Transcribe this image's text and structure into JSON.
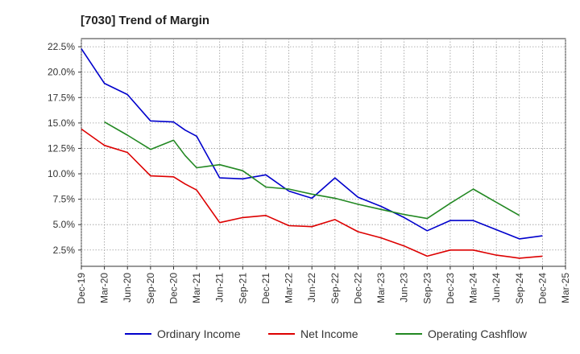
{
  "chart_data": {
    "type": "line",
    "title": "[7030]  Trend of Margin",
    "xlabel": "",
    "ylabel": "",
    "x_ticks": [
      "Dec-19",
      "Mar-20",
      "Jun-20",
      "Sep-20",
      "Dec-20",
      "Mar-21",
      "Jun-21",
      "Sep-21",
      "Dec-21",
      "Mar-22",
      "Jun-22",
      "Sep-22",
      "Dec-22",
      "Mar-23",
      "Jun-23",
      "Sep-23",
      "Dec-23",
      "Mar-24",
      "Jun-24",
      "Sep-24",
      "Dec-24",
      "Mar-25"
    ],
    "y_ticks": [
      "2.5%",
      "5.0%",
      "7.5%",
      "10.0%",
      "12.5%",
      "15.0%",
      "17.5%",
      "20.0%",
      "22.5%"
    ],
    "y_tick_values": [
      2.5,
      5.0,
      7.5,
      10.0,
      12.5,
      15.0,
      17.5,
      20.0,
      22.5
    ],
    "ylim": [
      0.9,
      23.3
    ],
    "x_range": [
      0,
      21
    ],
    "grid": true,
    "legend_position": "bottom",
    "series": [
      {
        "name": "Ordinary Income",
        "color": "#0000cc",
        "points": [
          [
            0,
            22.3
          ],
          [
            1,
            18.9
          ],
          [
            2,
            17.8
          ],
          [
            3,
            15.2
          ],
          [
            4,
            15.1
          ],
          [
            4.5,
            14.3
          ],
          [
            5,
            13.7
          ],
          [
            6,
            9.6
          ],
          [
            7,
            9.5
          ],
          [
            8,
            9.9
          ],
          [
            9,
            8.3
          ],
          [
            10,
            7.6
          ],
          [
            11,
            9.6
          ],
          [
            12,
            7.7
          ],
          [
            13,
            6.8
          ],
          [
            14,
            5.7
          ],
          [
            15,
            4.4
          ],
          [
            16,
            5.4
          ],
          [
            17,
            5.4
          ],
          [
            18,
            4.5
          ],
          [
            19,
            3.6
          ],
          [
            20,
            3.9
          ]
        ]
      },
      {
        "name": "Net Income",
        "color": "#dd0000",
        "points": [
          [
            0,
            14.4
          ],
          [
            1,
            12.8
          ],
          [
            2,
            12.1
          ],
          [
            3,
            9.8
          ],
          [
            4,
            9.7
          ],
          [
            4.5,
            9.0
          ],
          [
            5,
            8.4
          ],
          [
            6,
            5.2
          ],
          [
            7,
            5.7
          ],
          [
            8,
            5.9
          ],
          [
            9,
            4.9
          ],
          [
            10,
            4.8
          ],
          [
            11,
            5.5
          ],
          [
            12,
            4.3
          ],
          [
            13,
            3.7
          ],
          [
            14,
            2.9
          ],
          [
            15,
            1.9
          ],
          [
            16,
            2.5
          ],
          [
            17,
            2.5
          ],
          [
            18,
            2.0
          ],
          [
            19,
            1.7
          ],
          [
            20,
            1.9
          ]
        ]
      },
      {
        "name": "Operating Cashflow",
        "color": "#228822",
        "points": [
          [
            1,
            15.1
          ],
          [
            2,
            13.8
          ],
          [
            3,
            12.4
          ],
          [
            4,
            13.3
          ],
          [
            4.5,
            11.8
          ],
          [
            5,
            10.6
          ],
          [
            6,
            10.9
          ],
          [
            7,
            10.3
          ],
          [
            8,
            8.7
          ],
          [
            9,
            8.5
          ],
          [
            10,
            8.0
          ],
          [
            11,
            7.6
          ],
          [
            12,
            7.0
          ],
          [
            13,
            6.5
          ],
          [
            14,
            6.0
          ],
          [
            15,
            5.6
          ],
          [
            16,
            7.1
          ],
          [
            17,
            8.5
          ],
          [
            18,
            7.2
          ],
          [
            19,
            5.9
          ]
        ]
      }
    ]
  }
}
